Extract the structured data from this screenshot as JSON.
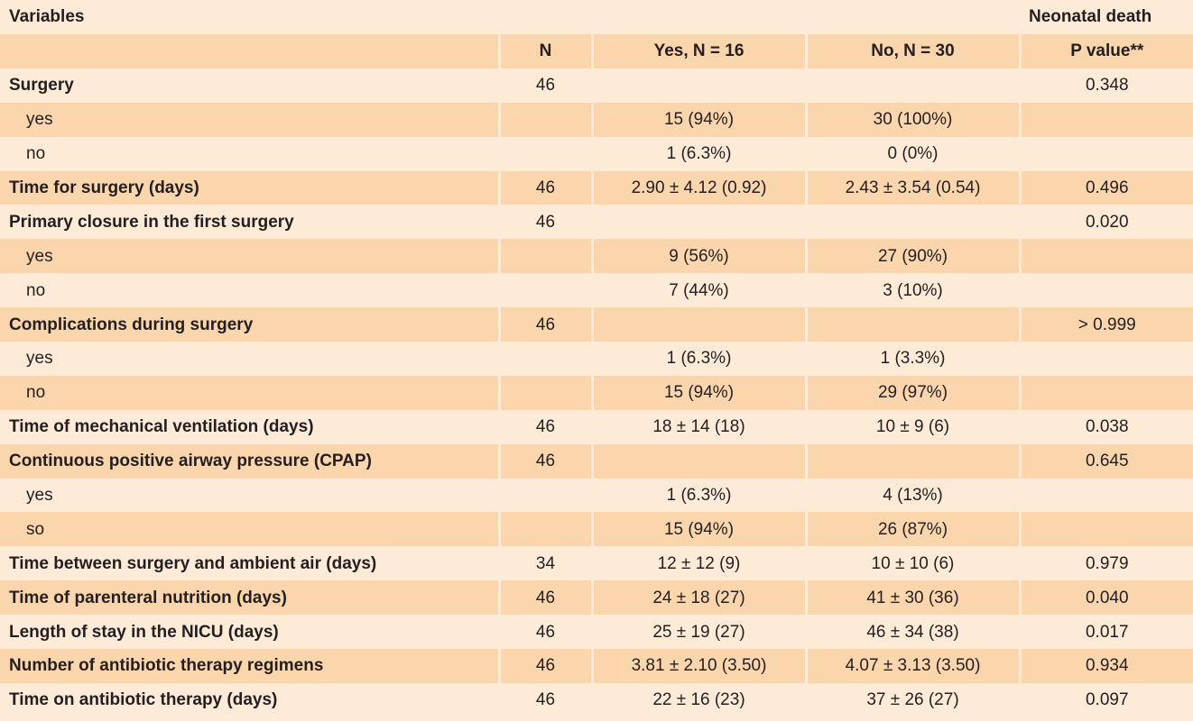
{
  "title": {
    "left": "Variables",
    "right": "Neonatal death"
  },
  "header": [
    "",
    "N",
    "Yes, N = 16",
    "No, N = 30",
    "P value**"
  ],
  "rows": [
    {
      "label": "Surgery",
      "type": "main",
      "n": "46",
      "yes": "",
      "no": "",
      "p": "0.348"
    },
    {
      "label": "yes",
      "type": "sub",
      "n": "",
      "yes": "15 (94%)",
      "no": "30 (100%)",
      "p": ""
    },
    {
      "label": "no",
      "type": "sub",
      "n": "",
      "yes": "1 (6.3%)",
      "no": "0 (0%)",
      "p": ""
    },
    {
      "label": "Time for surgery (days)",
      "type": "main",
      "n": "46",
      "yes": "2.90 ± 4.12 (0.92)",
      "no": "2.43 ± 3.54 (0.54)",
      "p": "0.496"
    },
    {
      "label": "Primary closure in the first surgery",
      "type": "main",
      "n": "46",
      "yes": "",
      "no": "",
      "p": "0.020"
    },
    {
      "label": "yes",
      "type": "sub",
      "n": "",
      "yes": "9 (56%)",
      "no": "27 (90%)",
      "p": ""
    },
    {
      "label": "no",
      "type": "sub",
      "n": "",
      "yes": "7 (44%)",
      "no": "3 (10%)",
      "p": ""
    },
    {
      "label": "Complications during surgery",
      "type": "main",
      "n": "46",
      "yes": "",
      "no": "",
      "p": "> 0.999"
    },
    {
      "label": "yes",
      "type": "sub",
      "n": "",
      "yes": "1 (6.3%)",
      "no": "1 (3.3%)",
      "p": ""
    },
    {
      "label": "no",
      "type": "sub",
      "n": "",
      "yes": "15 (94%)",
      "no": "29 (97%)",
      "p": ""
    },
    {
      "label": "Time of mechanical ventilation (days)",
      "type": "main",
      "n": "46",
      "yes": "18 ± 14 (18)",
      "no": "10 ± 9 (6)",
      "p": "0.038"
    },
    {
      "label": "Continuous positive airway pressure (CPAP)",
      "type": "main",
      "n": "46",
      "yes": "",
      "no": "",
      "p": "0.645"
    },
    {
      "label": "yes",
      "type": "sub",
      "n": "",
      "yes": "1 (6.3%)",
      "no": "4 (13%)",
      "p": ""
    },
    {
      "label": "so",
      "type": "sub",
      "n": "",
      "yes": "15 (94%)",
      "no": "26 (87%)",
      "p": ""
    },
    {
      "label": "Time between surgery and ambient air (days)",
      "type": "main",
      "n": "34",
      "yes": "12 ± 12 (9)",
      "no": "10 ± 10 (6)",
      "p": "0.979"
    },
    {
      "label": "Time of parenteral nutrition (days)",
      "type": "main",
      "n": "46",
      "yes": "24 ± 18 (27)",
      "no": "41 ± 30 (36)",
      "p": "0.040"
    },
    {
      "label": "Length of stay in the NICU (days)",
      "type": "main",
      "n": "46",
      "yes": "25 ± 19 (27)",
      "no": "46 ± 34 (38)",
      "p": "0.017"
    },
    {
      "label": "Number of antibiotic therapy regimens",
      "type": "main",
      "n": "46",
      "yes": "3.81 ± 2.10 (3.50)",
      "no": "4.07 ± 3.13 (3.50)",
      "p": "0.934"
    },
    {
      "label": "Time on antibiotic therapy (days)",
      "type": "main",
      "n": "46",
      "yes": "22 ± 16 (23)",
      "no": "37 ± 26 (27)",
      "p": "0.097"
    }
  ]
}
